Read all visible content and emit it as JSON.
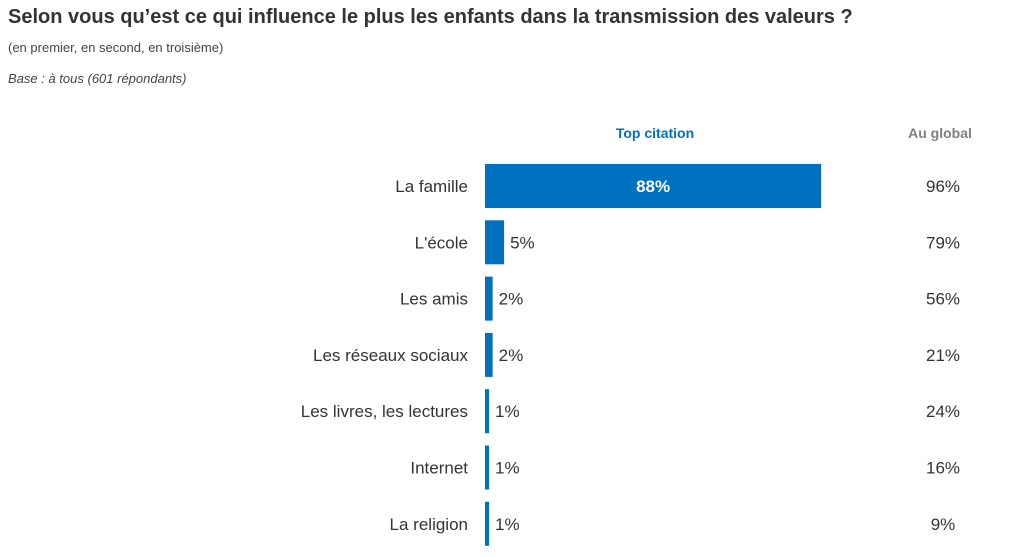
{
  "title": "Selon vous qu’est ce qui influence le plus les enfants dans la transmission des valeurs ?",
  "subtitle": "(en premier, en second, en troisième)",
  "base": "Base : à tous (601 répondants)",
  "colors": {
    "bar": "#0070c0",
    "top_header": "#0070c0",
    "global_header": "#7f7f7f"
  },
  "chart_data": {
    "type": "bar",
    "orientation": "horizontal",
    "categories": [
      "La famille",
      "L'école",
      "Les amis",
      "Les réseaux sociaux",
      "Les livres, les lectures",
      "Internet",
      "La religion"
    ],
    "series": [
      {
        "name": "Top citation",
        "values": [
          88,
          5,
          2,
          2,
          1,
          1,
          1
        ],
        "labels": [
          "88%",
          "5%",
          "2%",
          "2%",
          "1%",
          "1%",
          "1%"
        ]
      },
      {
        "name": "Au global",
        "values": [
          96,
          79,
          56,
          21,
          24,
          16,
          9
        ],
        "labels": [
          "96%",
          "79%",
          "56%",
          "21%",
          "24%",
          "16%",
          "9%"
        ]
      }
    ],
    "xlim": [
      0,
      100
    ],
    "grid": false,
    "legend": "none"
  }
}
